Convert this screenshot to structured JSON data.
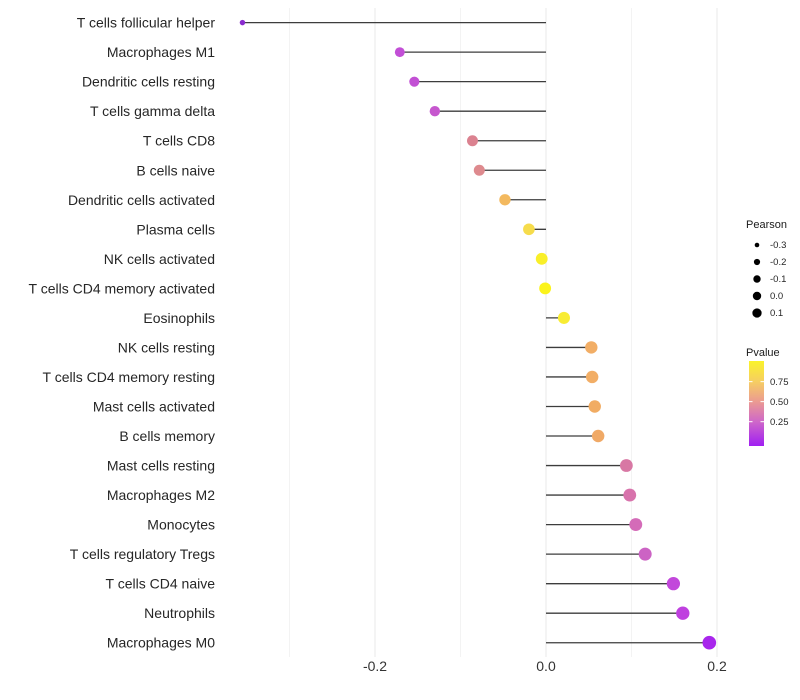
{
  "chart_data": {
    "type": "lollipop",
    "orientation": "horizontal",
    "title": "",
    "xlabel": "",
    "ylabel": "",
    "categories": [
      "T cells follicular helper",
      "Macrophages M1",
      "Dendritic cells resting",
      "T cells gamma delta",
      "T cells CD8",
      "B cells naive",
      "Dendritic cells activated",
      "Plasma cells",
      "NK cells activated",
      "T cells CD4 memory activated",
      "Eosinophils",
      "NK cells resting",
      "T cells CD4 memory resting",
      "Mast cells activated",
      "B cells memory",
      "Mast cells resting",
      "Macrophages M2",
      "Monocytes",
      "T cells regulatory  Tregs",
      "T cells CD4 naive",
      "Neutrophils",
      "Macrophages M0"
    ],
    "series": [
      {
        "name": "Pearson",
        "values": [
          -0.355,
          -0.171,
          -0.154,
          -0.13,
          -0.086,
          -0.078,
          -0.048,
          -0.02,
          -0.005,
          -0.001,
          0.021,
          0.053,
          0.054,
          0.057,
          0.061,
          0.094,
          0.098,
          0.105,
          0.116,
          0.149,
          0.16,
          0.191
        ]
      }
    ],
    "point_colors": [
      "#8A2BCE",
      "#C24FD6",
      "#C250D4",
      "#C657CE",
      "#DB8290",
      "#DE8A8E",
      "#F3B95F",
      "#F6DC4C",
      "#F9EF29",
      "#FBF31B",
      "#F8EC33",
      "#F2AE66",
      "#F2AE66",
      "#F1AC63",
      "#F0A966",
      "#D878A4",
      "#D873AC",
      "#D46BB8",
      "#CC63C4",
      "#C247DB",
      "#BF40DF",
      "#A826EC"
    ],
    "baseline": 0.0,
    "x_axis": {
      "tick_values": [
        -0.2,
        0.0,
        0.2
      ],
      "tick_labels": [
        "-0.2",
        "0.0",
        "0.2"
      ],
      "minor_tick_values": [
        -0.3,
        -0.1,
        0.1
      ],
      "range": [
        -0.372,
        0.224
      ],
      "grid": true
    },
    "size_legend": {
      "title": "Pearson",
      "labels": [
        "-0.3",
        "-0.2",
        "-0.1",
        "0.0",
        "0.1"
      ],
      "values": [
        -0.3,
        -0.2,
        -0.1,
        0.0,
        0.1
      ],
      "dot_color": "#000000"
    },
    "color_legend": {
      "title": "Pvalue",
      "tick_labels": [
        "0.75",
        "0.50",
        "0.25"
      ],
      "gradient_top_to_bottom": [
        "#FAF32A",
        "#F6CE62",
        "#EB9A92",
        "#CF68C8",
        "#A01FF2"
      ]
    },
    "legend_position": "right"
  },
  "style": {
    "background": "#FFFFFF",
    "stem_color": "#3D3D3D",
    "grid_major_color": "#E8E8E8",
    "grid_minor_color": "#F3F3F3"
  }
}
